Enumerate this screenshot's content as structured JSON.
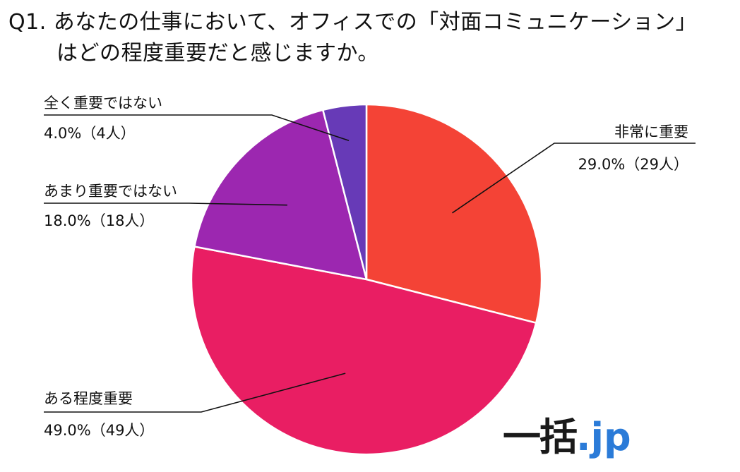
{
  "title": {
    "line1": "Q1. あなたの仕事において、オフィスでの「対面コミュニケーション」",
    "line2": "はどの程度重要だと感じますか。"
  },
  "logo": {
    "main": "一括",
    "suffix": ".jp"
  },
  "chart_data": {
    "type": "pie",
    "title": "Q1. あなたの仕事において、オフィスでの「対面コミュニケーション」はどの程度重要だと感じますか。",
    "slices": [
      {
        "label": "非常に重要",
        "value": 29.0,
        "count": 29,
        "value_text": "29.0%（29人）",
        "color": "#f44336"
      },
      {
        "label": "ある程度重要",
        "value": 49.0,
        "count": 49,
        "value_text": "49.0%（49人）",
        "color": "#e91e63"
      },
      {
        "label": "あまり重要ではない",
        "value": 18.0,
        "count": 18,
        "value_text": "18.0%（18人）",
        "color": "#9c27b0"
      },
      {
        "label": "全く重要ではない",
        "value": 4.0,
        "count": 4,
        "value_text": "4.0%（4人）",
        "color": "#673ab7"
      }
    ],
    "legend": "callouts"
  }
}
